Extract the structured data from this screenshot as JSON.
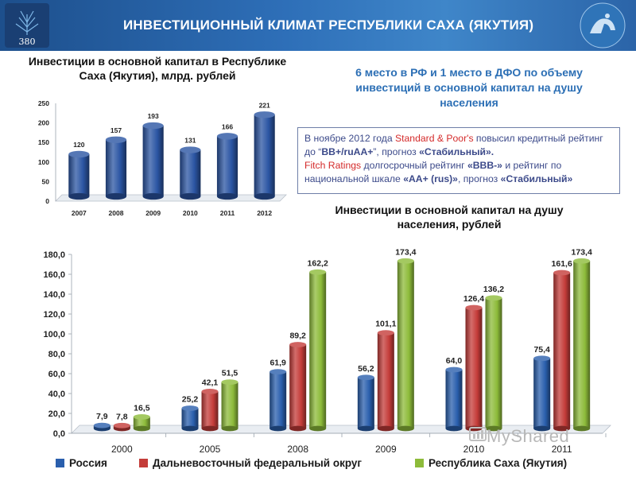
{
  "header": {
    "title": "ИНВЕСТИЦИОННЫЙ КЛИМАТ РЕСПУБЛИКИ САХА (ЯКУТИЯ)",
    "logo_left_text": "380"
  },
  "info": {
    "rank_text": "6 место в РФ и 1 место в ДФО по объему инвестиций в основной капитал на душу населения",
    "rating": {
      "p1": "В ноябре 2012 года ",
      "p2": "Standard & Poor's",
      "p3": " повысил кредитный рейтинг до “",
      "p4": "BB+/ruAA+",
      "p5": "”, прогноз ",
      "p6": "«Стабильный».",
      "p7": "Fitch Ratings",
      "p8": " долгосрочный рейтинг ",
      "p9": "«BBB-»",
      "p10": " и рейтинг по национальной шкале ",
      "p11": "«AA+ (rus)»",
      "p12": ", прогноз ",
      "p13": "«Стабильный»"
    }
  },
  "watermark": "MyShared",
  "colors": {
    "russia": "#2a5fad",
    "dfo": "#c43c39",
    "sakha": "#8dbb3a",
    "bar1": "#2b55a3"
  },
  "chart_data": [
    {
      "type": "bar",
      "title": "Инвестиции в основной капитал в Республике Саха (Якутия), млрд. рублей",
      "categories": [
        "2007",
        "2008",
        "2009",
        "2010",
        "2011",
        "2012"
      ],
      "values": [
        120,
        157,
        193,
        131,
        166,
        221
      ],
      "value_labels": [
        "120",
        "157",
        "193",
        "131",
        "166",
        "221"
      ],
      "y_ticks": [
        "0",
        "50",
        "100",
        "150",
        "200",
        "250"
      ],
      "ylim": [
        0,
        250
      ],
      "grid": false,
      "legend": "none"
    },
    {
      "type": "bar",
      "title": "Инвестиции в основной капитал на душу населения, рублей",
      "categories": [
        "2000",
        "2005",
        "2008",
        "2009",
        "2010",
        "2011"
      ],
      "series": [
        {
          "name": "Россия",
          "values": [
            7.9,
            25.2,
            61.9,
            56.2,
            64.0,
            75.4
          ],
          "labels": [
            "7,9",
            "25,2",
            "61,9",
            "56,2",
            "64,0",
            "75,4"
          ]
        },
        {
          "name": "Дальневосточный федеральный округ",
          "values": [
            7.8,
            42.1,
            89.2,
            101.1,
            126.4,
            161.6
          ],
          "labels": [
            "7,8",
            "42,1",
            "89,2",
            "101,1",
            "126,4",
            "161,6"
          ]
        },
        {
          "name": "Республика Саха (Якутия)",
          "values": [
            16.5,
            51.5,
            162.2,
            173.4,
            136.2,
            173.4
          ],
          "labels": [
            "16,5",
            "51,5",
            "162,2",
            "173,4",
            "136,2",
            "173,4"
          ]
        }
      ],
      "y_ticks": [
        "0,0",
        "20,0",
        "40,0",
        "60,0",
        "80,0",
        "100,0",
        "120,0",
        "140,0",
        "160,0",
        "180,0"
      ],
      "ylim": [
        0,
        180
      ],
      "grid": false,
      "legend": "bottom"
    }
  ]
}
